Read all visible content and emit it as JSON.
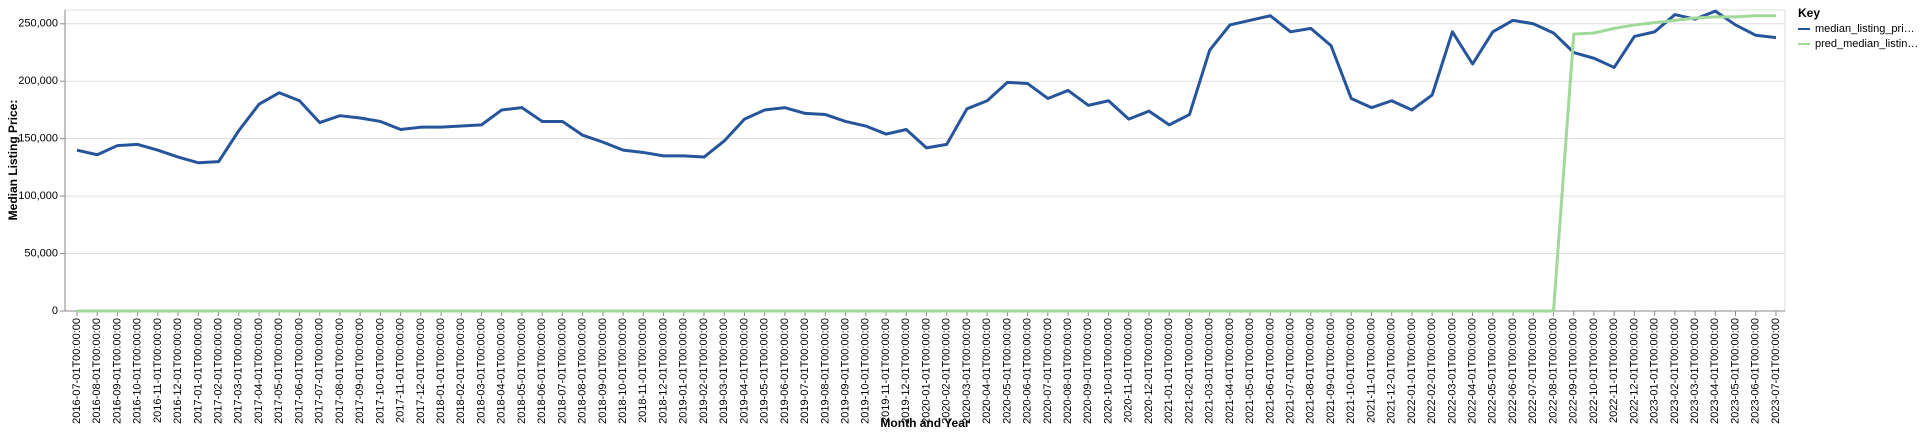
{
  "chart_data": {
    "type": "line",
    "y_label": "Median Listing Price:",
    "x_label": "Month and Year",
    "legend_title": "Key",
    "legend_position": "right",
    "grid": true,
    "categories": [
      "2016-07-01T00:00:00",
      "2016-08-01T00:00:00",
      "2016-09-01T00:00:00",
      "2016-10-01T00:00:00",
      "2016-11-01T00:00:00",
      "2016-12-01T00:00:00",
      "2017-01-01T00:00:00",
      "2017-02-01T00:00:00",
      "2017-03-01T00:00:00",
      "2017-04-01T00:00:00",
      "2017-05-01T00:00:00",
      "2017-06-01T00:00:00",
      "2017-07-01T00:00:00",
      "2017-08-01T00:00:00",
      "2017-09-01T00:00:00",
      "2017-10-01T00:00:00",
      "2017-11-01T00:00:00",
      "2017-12-01T00:00:00",
      "2018-01-01T00:00:00",
      "2018-02-01T00:00:00",
      "2018-03-01T00:00:00",
      "2018-04-01T00:00:00",
      "2018-05-01T00:00:00",
      "2018-06-01T00:00:00",
      "2018-07-01T00:00:00",
      "2018-08-01T00:00:00",
      "2018-09-01T00:00:00",
      "2018-10-01T00:00:00",
      "2018-11-01T00:00:00",
      "2018-12-01T00:00:00",
      "2019-01-01T00:00:00",
      "2019-02-01T00:00:00",
      "2019-03-01T00:00:00",
      "2019-04-01T00:00:00",
      "2019-05-01T00:00:00",
      "2019-06-01T00:00:00",
      "2019-07-01T00:00:00",
      "2019-08-01T00:00:00",
      "2019-09-01T00:00:00",
      "2019-10-01T00:00:00",
      "2019-11-01T00:00:00",
      "2019-12-01T00:00:00",
      "2020-01-01T00:00:00",
      "2020-02-01T00:00:00",
      "2020-03-01T00:00:00",
      "2020-04-01T00:00:00",
      "2020-05-01T00:00:00",
      "2020-06-01T00:00:00",
      "2020-07-01T00:00:00",
      "2020-08-01T00:00:00",
      "2020-09-01T00:00:00",
      "2020-10-01T00:00:00",
      "2020-11-01T00:00:00",
      "2020-12-01T00:00:00",
      "2021-01-01T00:00:00",
      "2021-02-01T00:00:00",
      "2021-03-01T00:00:00",
      "2021-04-01T00:00:00",
      "2021-05-01T00:00:00",
      "2021-06-01T00:00:00",
      "2021-07-01T00:00:00",
      "2021-08-01T00:00:00",
      "2021-09-01T00:00:00",
      "2021-10-01T00:00:00",
      "2021-11-01T00:00:00",
      "2021-12-01T00:00:00",
      "2022-01-01T00:00:00",
      "2022-02-01T00:00:00",
      "2022-03-01T00:00:00",
      "2022-04-01T00:00:00",
      "2022-05-01T00:00:00",
      "2022-06-01T00:00:00",
      "2022-07-01T00:00:00",
      "2022-08-01T00:00:00",
      "2022-09-01T00:00:00",
      "2022-10-01T00:00:00",
      "2022-11-01T00:00:00",
      "2022-12-01T00:00:00",
      "2023-01-01T00:00:00",
      "2023-02-01T00:00:00",
      "2023-03-01T00:00:00",
      "2023-04-01T00:00:00",
      "2023-05-01T00:00:00",
      "2023-06-01T00:00:00",
      "2023-07-01T00:00:00"
    ],
    "series": [
      {
        "name": "median_listing_pri…",
        "color": "#26559b",
        "values": [
          140000,
          136000,
          144000,
          145000,
          140000,
          134000,
          129000,
          130000,
          157000,
          180000,
          190000,
          183000,
          164000,
          170000,
          168000,
          165000,
          158000,
          160000,
          160000,
          161000,
          162000,
          175000,
          177000,
          165000,
          165000,
          153000,
          147000,
          140000,
          138000,
          135000,
          135000,
          134000,
          148000,
          167000,
          175000,
          177000,
          172000,
          171000,
          165000,
          161000,
          154000,
          158000,
          142000,
          145000,
          176000,
          183000,
          199000,
          198000,
          185000,
          192000,
          179000,
          183000,
          167000,
          174000,
          162000,
          171000,
          227000,
          249000,
          253000,
          257000,
          243000,
          246000,
          231000,
          185000,
          177000,
          183000,
          175000,
          188000,
          243000,
          215000,
          243000,
          253000,
          250000,
          242000,
          225000,
          220000,
          212000,
          239000,
          243000,
          258000,
          254000,
          261000,
          249000,
          240000,
          238000
        ]
      },
      {
        "name": "pred_median_listin…",
        "color": "#a1d99b",
        "values": [
          0,
          0,
          0,
          0,
          0,
          0,
          0,
          0,
          0,
          0,
          0,
          0,
          0,
          0,
          0,
          0,
          0,
          0,
          0,
          0,
          0,
          0,
          0,
          0,
          0,
          0,
          0,
          0,
          0,
          0,
          0,
          0,
          0,
          0,
          0,
          0,
          0,
          0,
          0,
          0,
          0,
          0,
          0,
          0,
          0,
          0,
          0,
          0,
          0,
          0,
          0,
          0,
          0,
          0,
          0,
          0,
          0,
          0,
          0,
          0,
          0,
          0,
          0,
          0,
          0,
          0,
          0,
          0,
          0,
          0,
          0,
          0,
          0,
          0,
          241000,
          242000,
          246000,
          249000,
          251000,
          253000,
          255000,
          256000,
          256000,
          257000,
          257000
        ]
      }
    ],
    "ylim": [
      0,
      262000
    ],
    "yticks": [
      0,
      {
        "value": 50000,
        "label": "50,000"
      },
      {
        "value": 100000,
        "label": "100,000"
      },
      {
        "value": 150000,
        "label": "150,000"
      },
      {
        "value": 200000,
        "label": "200,000"
      },
      {
        "value": 250000,
        "label": "250,000"
      }
    ]
  }
}
